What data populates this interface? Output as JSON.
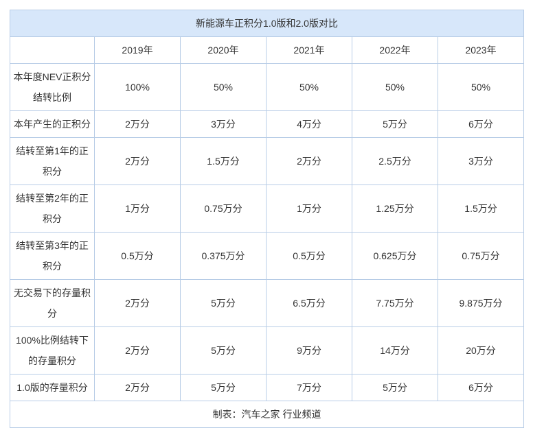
{
  "chart_data": {
    "type": "table",
    "title": "新能源车正积分1.0版和2.0版对比",
    "columns": [
      "",
      "2019年",
      "2020年",
      "2021年",
      "2022年",
      "2023年"
    ],
    "rows": [
      {
        "label": "本年度NEV正积分\n结转比例",
        "values": [
          "100%",
          "50%",
          "50%",
          "50%",
          "50%"
        ]
      },
      {
        "label": "本年产生的正积分",
        "values": [
          "2万分",
          "3万分",
          "4万分",
          "5万分",
          "6万分"
        ]
      },
      {
        "label": "结转至第1年的正\n积分",
        "values": [
          "2万分",
          "1.5万分",
          "2万分",
          "2.5万分",
          "3万分"
        ]
      },
      {
        "label": "结转至第2年的正\n积分",
        "values": [
          "1万分",
          "0.75万分",
          "1万分",
          "1.25万分",
          "1.5万分"
        ]
      },
      {
        "label": "结转至第3年的正\n积分",
        "values": [
          "0.5万分",
          "0.375万分",
          "0.5万分",
          "0.625万分",
          "0.75万分"
        ]
      },
      {
        "label": "无交易下的存量积\n分",
        "values": [
          "2万分",
          "5万分",
          "6.5万分",
          "7.75万分",
          "9.875万分"
        ]
      },
      {
        "label": "100%比例结转下\n的存量积分",
        "values": [
          "2万分",
          "5万分",
          "9万分",
          "14万分",
          "20万分"
        ]
      },
      {
        "label": "1.0版的存量积分",
        "values": [
          "2万分",
          "5万分",
          "7万分",
          "5万分",
          "6万分"
        ]
      }
    ],
    "footer": "制表：汽车之家 行业频道",
    "layout_hint": "title row and footer row span all 6 columns; first column holds row labels"
  },
  "colors": {
    "title_bg": "#d7e7fa",
    "border": "#b7cce6",
    "text": "#333333"
  }
}
